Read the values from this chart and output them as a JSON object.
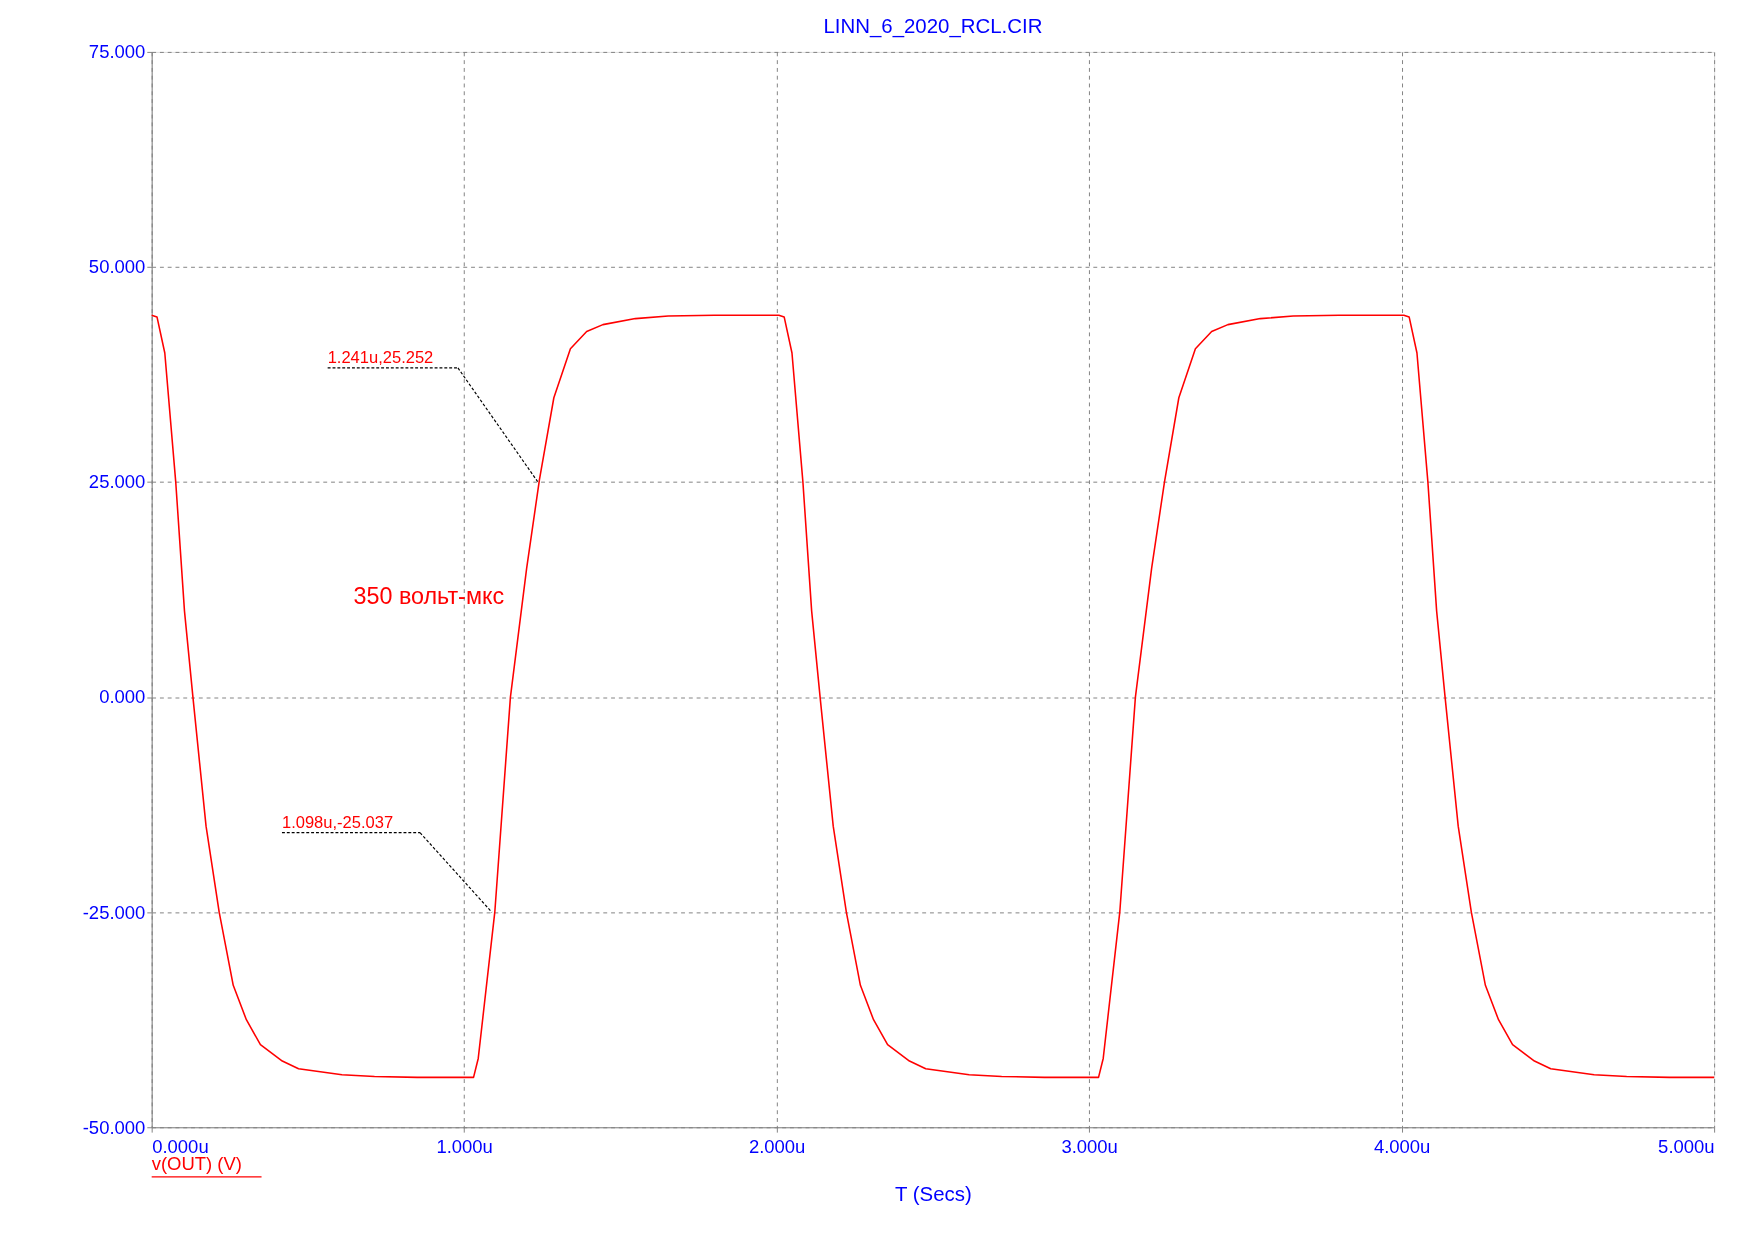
{
  "chart_data": {
    "type": "line",
    "title": "LINN_6_2020_RCL.CIR",
    "xlabel": "T (Secs)",
    "series": [
      {
        "name": "v(OUT) (V)",
        "color": "#ff0000",
        "x": [
          0,
          0.017,
          0.042,
          0.077,
          0.105,
          0.132,
          0.174,
          0.216,
          0.261,
          0.303,
          0.348,
          0.418,
          0.47,
          0.609,
          0.713,
          0.85,
          1.03,
          1.045,
          1.098,
          1.148,
          1.2,
          1.241,
          1.287,
          1.34,
          1.392,
          1.444,
          1.548,
          1.653,
          1.8,
          2.007,
          2.024,
          2.049,
          2.084,
          2.112,
          2.139,
          2.181,
          2.223,
          2.268,
          2.31,
          2.355,
          2.425,
          2.477,
          2.616,
          2.72,
          2.857,
          3.03,
          3.045,
          3.098,
          3.148,
          3.2,
          3.241,
          3.287,
          3.34,
          3.392,
          3.444,
          3.548,
          3.653,
          3.8,
          4.007,
          4.024,
          4.049,
          4.084,
          4.112,
          4.139,
          4.181,
          4.223,
          4.268,
          4.31,
          4.355,
          4.425,
          4.477,
          4.616,
          4.72,
          4.857,
          5.0
        ],
        "values": [
          44.4,
          44.2,
          40,
          25,
          10,
          0,
          -15,
          -25,
          -33.5,
          -37.5,
          -40.4,
          -42.3,
          -43.2,
          -43.9,
          -44.1,
          -44.2,
          -44.2,
          -42,
          -25,
          0,
          15,
          25.3,
          34.8,
          40.5,
          42.5,
          43.3,
          44.0,
          44.3,
          44.4,
          44.4,
          44.2,
          40,
          25,
          10,
          0,
          -15,
          -25,
          -33.5,
          -37.5,
          -40.4,
          -42.3,
          -43.2,
          -43.9,
          -44.1,
          -44.2,
          -44.2,
          -42,
          -25,
          0,
          15,
          25,
          34.8,
          40.5,
          42.5,
          43.3,
          44.0,
          44.3,
          44.4,
          44.4,
          44.2,
          40,
          25,
          10,
          0,
          -15,
          -25,
          -33.5,
          -37.5,
          -40.4,
          -42.3,
          -43.2,
          -43.9,
          -44.1,
          -44.2,
          -44.2
        ]
      }
    ],
    "xlim": [
      0,
      5
    ],
    "ylim": [
      -50,
      75
    ],
    "xticks": [
      {
        "value": 0,
        "label": "0.000u"
      },
      {
        "value": 1,
        "label": "1.000u"
      },
      {
        "value": 2,
        "label": "2.000u"
      },
      {
        "value": 3,
        "label": "3.000u"
      },
      {
        "value": 4,
        "label": "4.000u"
      },
      {
        "value": 5,
        "label": "5.000u"
      }
    ],
    "yticks": [
      {
        "value": -50,
        "label": "-50.000"
      },
      {
        "value": -25,
        "label": "-25.000"
      },
      {
        "value": 0,
        "label": "0.000"
      },
      {
        "value": 25,
        "label": "25.000"
      },
      {
        "value": 50,
        "label": "50.000"
      },
      {
        "value": 75,
        "label": "75.000"
      }
    ],
    "grid": true,
    "legend": "bottom left",
    "marker": "none",
    "line_style": "solid",
    "annotations": [
      "1.241u,25.252",
      "1.098u,-25.037",
      "350 вольт-мкс"
    ]
  }
}
